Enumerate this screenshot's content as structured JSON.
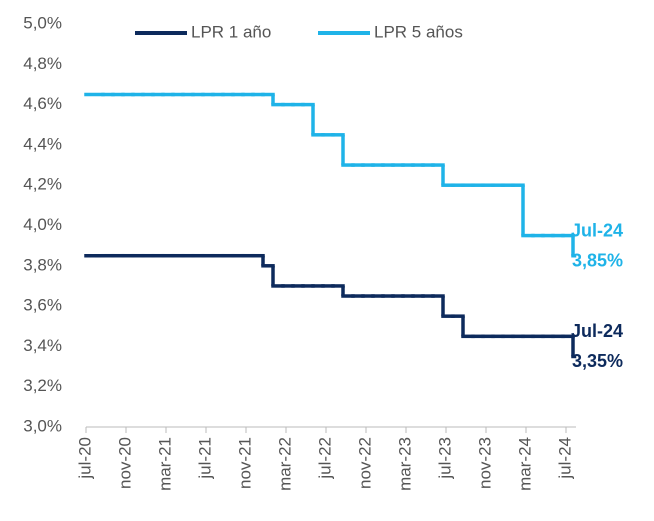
{
  "chart_data": {
    "type": "step",
    "categories": [
      "jul-20",
      null,
      null,
      null,
      "nov-20",
      null,
      null,
      null,
      "mar-21",
      null,
      null,
      null,
      "jul-21",
      null,
      null,
      null,
      "nov-21",
      null,
      null,
      null,
      "mar-22",
      null,
      null,
      null,
      "jul-22",
      null,
      null,
      null,
      "nov-22",
      null,
      null,
      null,
      "mar-23",
      null,
      null,
      null,
      "jul-23",
      null,
      null,
      null,
      "nov-23",
      null,
      null,
      null,
      "mar-24",
      null,
      null,
      null,
      "jul-24"
    ],
    "series": [
      {
        "name": "LPR 1 año",
        "color": "#0d2a5c",
        "values": [
          3.85,
          3.85,
          3.85,
          3.85,
          3.85,
          3.85,
          3.85,
          3.85,
          3.85,
          3.85,
          3.85,
          3.85,
          3.85,
          3.85,
          3.85,
          3.85,
          3.85,
          3.8,
          3.7,
          3.7,
          3.7,
          3.7,
          3.7,
          3.7,
          3.7,
          3.65,
          3.65,
          3.65,
          3.65,
          3.65,
          3.65,
          3.65,
          3.65,
          3.65,
          3.65,
          3.55,
          3.55,
          3.45,
          3.45,
          3.45,
          3.45,
          3.45,
          3.45,
          3.45,
          3.45,
          3.45,
          3.45,
          3.45,
          3.35
        ],
        "annotation": [
          "Jul-24",
          "3,35%"
        ]
      },
      {
        "name": "LPR 5 años",
        "color": "#1fb3e8",
        "values": [
          4.65,
          4.65,
          4.65,
          4.65,
          4.65,
          4.65,
          4.65,
          4.65,
          4.65,
          4.65,
          4.65,
          4.65,
          4.65,
          4.65,
          4.65,
          4.65,
          4.65,
          4.65,
          4.6,
          4.6,
          4.6,
          4.6,
          4.45,
          4.45,
          4.45,
          4.3,
          4.3,
          4.3,
          4.3,
          4.3,
          4.3,
          4.3,
          4.3,
          4.3,
          4.3,
          4.2,
          4.2,
          4.2,
          4.2,
          4.2,
          4.2,
          4.2,
          4.2,
          3.95,
          3.95,
          3.95,
          3.95,
          3.95,
          3.85
        ],
        "annotation": [
          "Jul-24",
          "3,85%"
        ]
      }
    ],
    "ylim": [
      3.0,
      5.0
    ],
    "yticks": [
      {
        "value": 3.0,
        "label": "3,0%"
      },
      {
        "value": 3.2,
        "label": "3,2%"
      },
      {
        "value": 3.4,
        "label": "3,4%"
      },
      {
        "value": 3.6,
        "label": "3,6%"
      },
      {
        "value": 3.8,
        "label": "3,8%"
      },
      {
        "value": 4.0,
        "label": "4,0%"
      },
      {
        "value": 4.2,
        "label": "4,2%"
      },
      {
        "value": 4.4,
        "label": "4,4%"
      },
      {
        "value": 4.6,
        "label": "4,6%"
      },
      {
        "value": 4.8,
        "label": "4,8%"
      },
      {
        "value": 5.0,
        "label": "5,0%"
      }
    ],
    "grid": false,
    "legend": "top"
  }
}
